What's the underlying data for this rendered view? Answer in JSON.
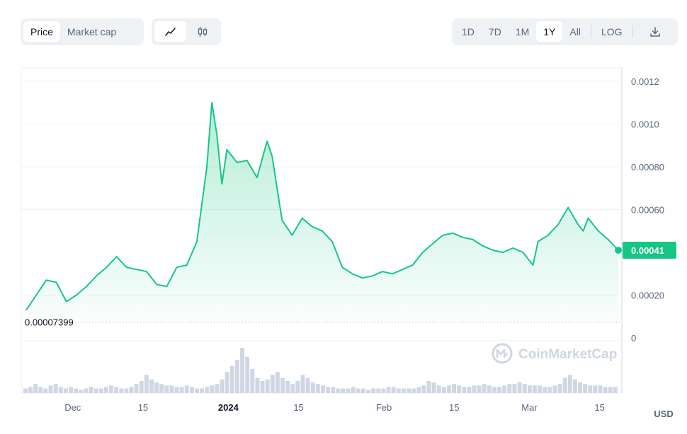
{
  "toolbar": {
    "metric_tabs": [
      {
        "label": "Price",
        "active": true
      },
      {
        "label": "Market cap",
        "active": false
      }
    ],
    "chart_style_icons": [
      "line-chart-icon",
      "candlestick-icon"
    ],
    "ranges": [
      {
        "label": "1D",
        "active": false
      },
      {
        "label": "7D",
        "active": false
      },
      {
        "label": "1M",
        "active": false
      },
      {
        "label": "1Y",
        "active": true
      },
      {
        "label": "All",
        "active": false
      }
    ],
    "log_label": "LOG",
    "download_icon": "download-icon"
  },
  "watermark": "CoinMarketCap",
  "currency": "USD",
  "colors": {
    "line": "#16c784",
    "fill_top": "#16c784",
    "bars": "#cfd6e4"
  },
  "chart_data": {
    "type": "area",
    "y_ticks": [
      "0.0012",
      "0.0010",
      "0.00080",
      "0.00060",
      "0.00020",
      "0"
    ],
    "x_ticks": [
      {
        "label": "Dec",
        "bold": false
      },
      {
        "label": "15",
        "bold": false
      },
      {
        "label": "2024",
        "bold": true
      },
      {
        "label": "15",
        "bold": false
      },
      {
        "label": "Feb",
        "bold": false
      },
      {
        "label": "15",
        "bold": false
      },
      {
        "label": "Mar",
        "bold": false
      },
      {
        "label": "15",
        "bold": false
      }
    ],
    "ylim": [
      0,
      0.0012
    ],
    "xlim": [
      "2023-11-22",
      "2024-03-19"
    ],
    "min_marker": {
      "label": "0.00007399",
      "value": 7.399e-05
    },
    "last_price": {
      "label": "0.00041",
      "value": 0.00041
    },
    "series": [
      {
        "values": [
          [
            "2023-11-22",
            0.00013
          ],
          [
            "2023-11-24",
            0.0002
          ],
          [
            "2023-11-26",
            0.00027
          ],
          [
            "2023-11-28",
            0.00026
          ],
          [
            "2023-11-30",
            0.00017
          ],
          [
            "2023-12-02",
            0.0002
          ],
          [
            "2023-12-04",
            0.00024
          ],
          [
            "2023-12-06",
            0.00029
          ],
          [
            "2023-12-08",
            0.00033
          ],
          [
            "2023-12-10",
            0.00038
          ],
          [
            "2023-12-12",
            0.00033
          ],
          [
            "2023-12-14",
            0.00032
          ],
          [
            "2023-12-16",
            0.00031
          ],
          [
            "2023-12-18",
            0.00025
          ],
          [
            "2023-12-20",
            0.00024
          ],
          [
            "2023-12-22",
            0.00033
          ],
          [
            "2023-12-24",
            0.00034
          ],
          [
            "2023-12-26",
            0.00045
          ],
          [
            "2023-12-28",
            0.0008
          ],
          [
            "2023-12-29",
            0.0011
          ],
          [
            "2023-12-30",
            0.00095
          ],
          [
            "2023-12-31",
            0.00072
          ],
          [
            "2024-01-01",
            0.00088
          ],
          [
            "2024-01-03",
            0.00082
          ],
          [
            "2024-01-05",
            0.00083
          ],
          [
            "2024-01-07",
            0.00075
          ],
          [
            "2024-01-09",
            0.00092
          ],
          [
            "2024-01-10",
            0.00085
          ],
          [
            "2024-01-11",
            0.0007
          ],
          [
            "2024-01-12",
            0.00055
          ],
          [
            "2024-01-14",
            0.00048
          ],
          [
            "2024-01-16",
            0.00056
          ],
          [
            "2024-01-18",
            0.00052
          ],
          [
            "2024-01-20",
            0.0005
          ],
          [
            "2024-01-22",
            0.00045
          ],
          [
            "2024-01-24",
            0.00033
          ],
          [
            "2024-01-26",
            0.0003
          ],
          [
            "2024-01-28",
            0.00028
          ],
          [
            "2024-01-30",
            0.00029
          ],
          [
            "2024-02-01",
            0.00031
          ],
          [
            "2024-02-03",
            0.0003
          ],
          [
            "2024-02-05",
            0.00032
          ],
          [
            "2024-02-07",
            0.00034
          ],
          [
            "2024-02-09",
            0.0004
          ],
          [
            "2024-02-11",
            0.00044
          ],
          [
            "2024-02-13",
            0.00048
          ],
          [
            "2024-02-15",
            0.00049
          ],
          [
            "2024-02-17",
            0.00047
          ],
          [
            "2024-02-19",
            0.00046
          ],
          [
            "2024-02-21",
            0.00043
          ],
          [
            "2024-02-23",
            0.00041
          ],
          [
            "2024-02-25",
            0.0004
          ],
          [
            "2024-02-27",
            0.00042
          ],
          [
            "2024-02-29",
            0.0004
          ],
          [
            "2024-03-02",
            0.00034
          ],
          [
            "2024-03-03",
            0.00045
          ],
          [
            "2024-03-05",
            0.00048
          ],
          [
            "2024-03-07",
            0.00053
          ],
          [
            "2024-03-09",
            0.00061
          ],
          [
            "2024-03-11",
            0.00053
          ],
          [
            "2024-03-12",
            0.0005
          ],
          [
            "2024-03-13",
            0.00056
          ],
          [
            "2024-03-15",
            0.0005
          ],
          [
            "2024-03-17",
            0.00046
          ],
          [
            "2024-03-19",
            0.00041
          ]
        ]
      }
    ],
    "volume": [
      3,
      4,
      6,
      4,
      3,
      5,
      6,
      4,
      3,
      4,
      3,
      2,
      3,
      4,
      3,
      3,
      4,
      5,
      4,
      3,
      3,
      4,
      6,
      8,
      12,
      9,
      7,
      6,
      5,
      5,
      4,
      4,
      5,
      4,
      3,
      3,
      4,
      5,
      6,
      9,
      14,
      18,
      22,
      30,
      24,
      16,
      10,
      8,
      9,
      12,
      14,
      10,
      8,
      6,
      8,
      12,
      10,
      7,
      6,
      5,
      4,
      4,
      3,
      3,
      3,
      4,
      3,
      3,
      2,
      3,
      3,
      3,
      4,
      4,
      3,
      3,
      3,
      3,
      4,
      5,
      8,
      7,
      5,
      4,
      5,
      6,
      5,
      4,
      4,
      5,
      5,
      6,
      5,
      4,
      4,
      5,
      6,
      6,
      7,
      6,
      5,
      5,
      5,
      4,
      4,
      5,
      6,
      10,
      12,
      9,
      7,
      6,
      5,
      5,
      5,
      4,
      4,
      4
    ]
  }
}
